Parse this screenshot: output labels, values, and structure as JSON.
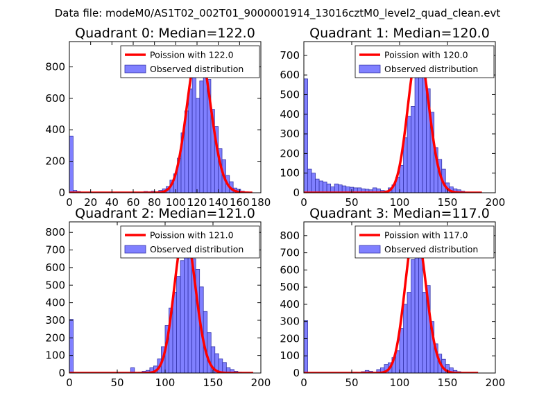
{
  "suptitle": "Data file: modeM0/AS1T02_002T01_9000001914_13016cztM0_level2_quad_clean.evt",
  "colors": {
    "bar_fill": "#8080ff",
    "bar_edge": "#3333aa",
    "line": "#ff0000",
    "axis": "#000000"
  },
  "chart_data": [
    {
      "type": "bar",
      "title": "Quadrant 0: Median=122.0",
      "xlim": [
        0,
        180
      ],
      "ylim": [
        0,
        960
      ],
      "xticks": [
        0,
        20,
        40,
        60,
        80,
        100,
        120,
        140,
        160,
        180
      ],
      "yticks": [
        0,
        200,
        400,
        600,
        800
      ],
      "legend": {
        "placement": "top-right",
        "line_label": "Poission with 122.0",
        "bar_label": "Observed distribution"
      },
      "bin_width": 3.5,
      "bars": [
        [
          0,
          360
        ],
        [
          3.5,
          15
        ],
        [
          7,
          8
        ],
        [
          49,
          2
        ],
        [
          70,
          8
        ],
        [
          73.5,
          6
        ],
        [
          77,
          10
        ],
        [
          80.5,
          5
        ],
        [
          84,
          15
        ],
        [
          87.5,
          25
        ],
        [
          91,
          40
        ],
        [
          94.5,
          80
        ],
        [
          98,
          120
        ],
        [
          101.5,
          220
        ],
        [
          105,
          380
        ],
        [
          108.5,
          520
        ],
        [
          112,
          660
        ],
        [
          115.5,
          780
        ],
        [
          119,
          600
        ],
        [
          122.5,
          710
        ],
        [
          126,
          880
        ],
        [
          129.5,
          720
        ],
        [
          133,
          530
        ],
        [
          136.5,
          420
        ],
        [
          140,
          280
        ],
        [
          143.5,
          210
        ],
        [
          147,
          110
        ],
        [
          150.5,
          70
        ],
        [
          154,
          30
        ],
        [
          157.5,
          22
        ],
        [
          161,
          10
        ],
        [
          164.5,
          5
        ]
      ],
      "poisson": {
        "mean": 122.0,
        "peak": 920,
        "x_range": [
          0,
          172
        ]
      }
    },
    {
      "type": "bar",
      "title": "Quadrant 1: Median=120.0",
      "xlim": [
        0,
        200
      ],
      "ylim": [
        0,
        770
      ],
      "xticks": [
        0,
        50,
        100,
        150,
        200
      ],
      "yticks": [
        0,
        100,
        200,
        300,
        400,
        500,
        600,
        700
      ],
      "legend": {
        "placement": "top-right",
        "line_label": "Poission with 120.0",
        "bar_label": "Observed distribution"
      },
      "bin_width": 4,
      "bars": [
        [
          0,
          580
        ],
        [
          4,
          120
        ],
        [
          8,
          100
        ],
        [
          12,
          70
        ],
        [
          16,
          60
        ],
        [
          20,
          55
        ],
        [
          24,
          45
        ],
        [
          28,
          30
        ],
        [
          32,
          45
        ],
        [
          36,
          40
        ],
        [
          40,
          35
        ],
        [
          44,
          30
        ],
        [
          48,
          28
        ],
        [
          52,
          25
        ],
        [
          56,
          25
        ],
        [
          60,
          20
        ],
        [
          64,
          18
        ],
        [
          68,
          15
        ],
        [
          72,
          25
        ],
        [
          76,
          20
        ],
        [
          80,
          12
        ],
        [
          84,
          10
        ],
        [
          88,
          25
        ],
        [
          92,
          40
        ],
        [
          96,
          80
        ],
        [
          100,
          140
        ],
        [
          104,
          280
        ],
        [
          108,
          390
        ],
        [
          112,
          440
        ],
        [
          116,
          710
        ],
        [
          120,
          600
        ],
        [
          124,
          650
        ],
        [
          128,
          530
        ],
        [
          132,
          410
        ],
        [
          136,
          230
        ],
        [
          140,
          170
        ],
        [
          144,
          120
        ],
        [
          148,
          50
        ],
        [
          152,
          30
        ],
        [
          156,
          20
        ],
        [
          160,
          15
        ],
        [
          164,
          8
        ],
        [
          168,
          4
        ]
      ],
      "poisson": {
        "mean": 120.0,
        "peak": 730,
        "x_range": [
          0,
          186
        ]
      }
    },
    {
      "type": "bar",
      "title": "Quadrant 2: Median=121.0",
      "xlim": [
        0,
        200
      ],
      "ylim": [
        0,
        860
      ],
      "xticks": [
        0,
        50,
        100,
        150,
        200
      ],
      "yticks": [
        0,
        100,
        200,
        300,
        400,
        500,
        600,
        700,
        800
      ],
      "legend": {
        "placement": "top-right",
        "line_label": "Poission with 121.0",
        "bar_label": "Observed distribution"
      },
      "bin_width": 4,
      "bars": [
        [
          0,
          305
        ],
        [
          64,
          30
        ],
        [
          72,
          5
        ],
        [
          76,
          10
        ],
        [
          80,
          15
        ],
        [
          84,
          30
        ],
        [
          88,
          40
        ],
        [
          92,
          80
        ],
        [
          96,
          150
        ],
        [
          100,
          270
        ],
        [
          104,
          370
        ],
        [
          108,
          460
        ],
        [
          112,
          550
        ],
        [
          116,
          640
        ],
        [
          120,
          790
        ],
        [
          124,
          820
        ],
        [
          128,
          650
        ],
        [
          132,
          590
        ],
        [
          136,
          490
        ],
        [
          140,
          350
        ],
        [
          144,
          230
        ],
        [
          148,
          150
        ],
        [
          152,
          110
        ],
        [
          156,
          80
        ],
        [
          160,
          60
        ],
        [
          164,
          30
        ],
        [
          168,
          20
        ],
        [
          172,
          10
        ],
        [
          176,
          5
        ]
      ],
      "poisson": {
        "mean": 121.0,
        "peak": 810,
        "x_range": [
          0,
          192
        ]
      }
    },
    {
      "type": "bar",
      "title": "Quadrant 3: Median=117.0",
      "xlim": [
        0,
        200
      ],
      "ylim": [
        0,
        880
      ],
      "xticks": [
        0,
        50,
        100,
        150,
        200
      ],
      "yticks": [
        0,
        100,
        200,
        300,
        400,
        500,
        600,
        700,
        800
      ],
      "legend": {
        "placement": "top-right",
        "line_label": "Poission with 117.0",
        "bar_label": "Observed distribution"
      },
      "bin_width": 4,
      "bars": [
        [
          0,
          305
        ],
        [
          52,
          5
        ],
        [
          60,
          8
        ],
        [
          64,
          15
        ],
        [
          68,
          10
        ],
        [
          72,
          5
        ],
        [
          76,
          20
        ],
        [
          80,
          30
        ],
        [
          84,
          50
        ],
        [
          88,
          60
        ],
        [
          92,
          90
        ],
        [
          96,
          130
        ],
        [
          100,
          260
        ],
        [
          104,
          400
        ],
        [
          108,
          470
        ],
        [
          112,
          660
        ],
        [
          116,
          850
        ],
        [
          120,
          760
        ],
        [
          124,
          470
        ],
        [
          128,
          510
        ],
        [
          132,
          300
        ],
        [
          136,
          170
        ],
        [
          140,
          110
        ],
        [
          144,
          80
        ],
        [
          148,
          50
        ],
        [
          152,
          30
        ],
        [
          156,
          15
        ],
        [
          160,
          8
        ],
        [
          164,
          4
        ]
      ],
      "poisson": {
        "mean": 117.0,
        "peak": 845,
        "x_range": [
          0,
          182
        ]
      }
    }
  ]
}
